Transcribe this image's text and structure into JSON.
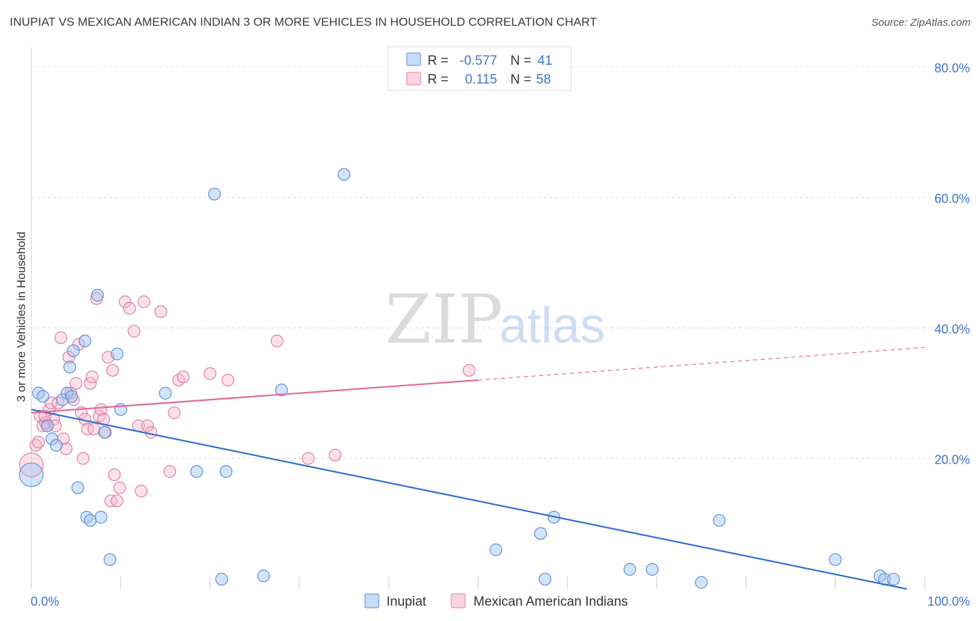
{
  "chart_data": {
    "type": "scatter",
    "title": "INUPIAT VS MEXICAN AMERICAN INDIAN 3 OR MORE VEHICLES IN HOUSEHOLD CORRELATION CHART",
    "source": "Source: ZipAtlas.com",
    "xlabel": "",
    "ylabel": "3 or more Vehicles in Household",
    "xlim": [
      0,
      100
    ],
    "ylim": [
      0,
      80
    ],
    "xticks": [
      "0.0%",
      "100.0%"
    ],
    "yticks": [
      {
        "value": 80,
        "label": "80.0%"
      },
      {
        "value": 60,
        "label": "60.0%"
      },
      {
        "value": 40,
        "label": "40.0%"
      },
      {
        "value": 20,
        "label": "20.0%"
      }
    ],
    "watermark": {
      "zip": "ZIP",
      "atlas": "atlas"
    },
    "legend": [
      {
        "name": "Inupiat",
        "r_label": "R =",
        "r": "-0.577",
        "n_label": "N =",
        "n": "41",
        "color": "#8ab4ec"
      },
      {
        "name": "Mexican American Indians",
        "r_label": "R =",
        "r": "0.115",
        "n_label": "N =",
        "n": "58",
        "color": "#f4a8c2"
      }
    ],
    "series": [
      {
        "name": "Inupiat",
        "color": "#8ab4ec",
        "stroke": "#5b8ed8",
        "trend": {
          "x0": 0,
          "y0": 27.5,
          "x1": 98,
          "y1": 0,
          "color": "#2f6fd0",
          "dash_from": null
        },
        "points": [
          [
            0,
            17.5
          ],
          [
            0.8,
            30
          ],
          [
            1.3,
            29.5
          ],
          [
            1.8,
            25
          ],
          [
            2.3,
            23
          ],
          [
            2.8,
            22
          ],
          [
            3.5,
            29
          ],
          [
            4,
            30
          ],
          [
            4.3,
            34
          ],
          [
            4.5,
            29.5
          ],
          [
            4.7,
            36.5
          ],
          [
            5.2,
            15.5
          ],
          [
            6,
            38
          ],
          [
            6.2,
            11
          ],
          [
            6.6,
            10.5
          ],
          [
            7.4,
            45
          ],
          [
            7.8,
            11
          ],
          [
            8.2,
            24
          ],
          [
            8.8,
            4.5
          ],
          [
            9.6,
            36
          ],
          [
            10,
            27.5
          ],
          [
            15,
            30
          ],
          [
            18.5,
            18
          ],
          [
            20.5,
            60.5
          ],
          [
            21.3,
            1.5
          ],
          [
            21.8,
            18
          ],
          [
            26,
            2
          ],
          [
            28,
            30.5
          ],
          [
            35,
            63.5
          ],
          [
            52,
            6
          ],
          [
            57,
            8.5
          ],
          [
            57.5,
            1.5
          ],
          [
            58.5,
            11
          ],
          [
            67,
            3
          ],
          [
            69.5,
            3
          ],
          [
            75,
            1
          ],
          [
            77,
            10.5
          ],
          [
            90,
            4.5
          ],
          [
            95,
            2
          ],
          [
            95.5,
            1.5
          ],
          [
            96.5,
            1.5
          ]
        ]
      },
      {
        "name": "Mexican American Indians",
        "color": "#f4a8c2",
        "stroke": "#e07ea0",
        "trend": {
          "x0": 0,
          "y0": 27,
          "x1": 100,
          "y1": 37,
          "color": "#e2689a",
          "dash_from": 50
        },
        "points": [
          [
            0,
            19
          ],
          [
            0.5,
            22
          ],
          [
            0.8,
            22.5
          ],
          [
            1,
            26.5
          ],
          [
            1.3,
            25
          ],
          [
            1.6,
            25.5
          ],
          [
            1.8,
            25
          ],
          [
            2,
            27.5
          ],
          [
            2.2,
            28.5
          ],
          [
            2.5,
            26
          ],
          [
            2.7,
            25
          ],
          [
            3,
            28.5
          ],
          [
            3.3,
            38.5
          ],
          [
            3.6,
            23
          ],
          [
            3.9,
            21.5
          ],
          [
            4.2,
            35.5
          ],
          [
            4.4,
            30
          ],
          [
            4.7,
            29
          ],
          [
            5,
            31.5
          ],
          [
            5.3,
            37.5
          ],
          [
            5.6,
            27
          ],
          [
            5.8,
            20
          ],
          [
            6,
            26
          ],
          [
            6.3,
            24.5
          ],
          [
            6.6,
            31.5
          ],
          [
            6.8,
            32.5
          ],
          [
            7,
            24.5
          ],
          [
            7.3,
            44.5
          ],
          [
            7.6,
            26.5
          ],
          [
            7.8,
            27.5
          ],
          [
            8.1,
            26
          ],
          [
            8.3,
            24
          ],
          [
            8.6,
            35.5
          ],
          [
            8.9,
            13.5
          ],
          [
            9.1,
            33.5
          ],
          [
            9.3,
            17.5
          ],
          [
            9.6,
            13.5
          ],
          [
            9.9,
            15.5
          ],
          [
            10.5,
            44
          ],
          [
            11,
            43
          ],
          [
            11.5,
            39.5
          ],
          [
            12,
            25
          ],
          [
            12.3,
            15
          ],
          [
            12.6,
            44
          ],
          [
            13,
            25
          ],
          [
            13.4,
            24
          ],
          [
            14.5,
            42.5
          ],
          [
            15.5,
            18
          ],
          [
            16,
            27
          ],
          [
            16.5,
            32
          ],
          [
            17,
            32.5
          ],
          [
            20,
            33
          ],
          [
            22,
            32
          ],
          [
            27.5,
            38
          ],
          [
            31,
            20
          ],
          [
            34,
            20.5
          ],
          [
            49,
            33.5
          ],
          [
            1.5,
            26.5
          ]
        ]
      }
    ]
  }
}
